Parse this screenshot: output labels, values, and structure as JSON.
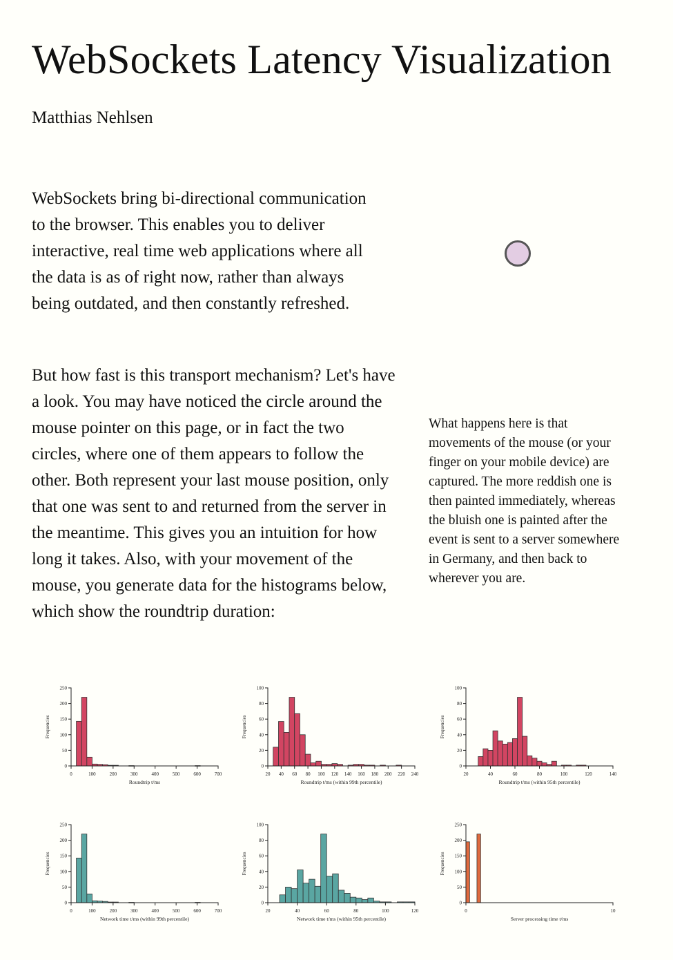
{
  "page": {
    "title": "WebSockets Latency Visualization",
    "author": "Matthias Nehlsen",
    "intro": "WebSockets bring bi-directional communication to the browser. This enables you to deliver interactive, real time web applications where all the data is as of right now, rather than always being outdated, and then constantly refreshed.",
    "body": "But how fast is this transport mechanism? Let's have a look. You may have noticed the circle around the mouse pointer on this page, or in fact the two circles, where one of them appears to follow the other. Both represent your last mouse position, only that one was sent to and returned from the server in the meantime. This gives you an intuition for how long it takes. Also, with your movement of the mouse, you generate data for the histograms below, which show the roundtrip duration:",
    "sidenote": "What happens here is that movements of the mouse (or your finger on your mobile device) are captured. The more reddish one is then painted immediately, whereas the bluish one is painted after the event is sent to a server somewhere in Germany, and then back to wherever you are."
  },
  "colors": {
    "roundtrip": "#d24562",
    "network": "#5aa6a2",
    "server": "#e06a3e",
    "cursor_circle": "#e3cde3"
  },
  "chart_data": [
    {
      "type": "bar",
      "xlabel": "Roundtrip t/ms",
      "ylabel": "Frequencies",
      "xlim": [
        0,
        700
      ],
      "ylim": [
        0,
        250
      ],
      "xticks": [
        0,
        100,
        200,
        300,
        400,
        500,
        600,
        700
      ],
      "yticks": [
        0,
        50,
        100,
        150,
        200,
        250
      ],
      "bin_width": 25,
      "color_key": "roundtrip",
      "bins": [
        [
          25,
          143
        ],
        [
          50,
          220
        ],
        [
          75,
          28
        ],
        [
          100,
          6
        ],
        [
          125,
          5
        ],
        [
          150,
          4
        ],
        [
          175,
          2
        ],
        [
          200,
          2
        ],
        [
          275,
          1
        ],
        [
          590,
          1
        ]
      ]
    },
    {
      "type": "bar",
      "xlabel": "Roundtrip t/ms (within 99th percentile)",
      "ylabel": "Frequencies",
      "xlim": [
        20,
        240
      ],
      "ylim": [
        0,
        100
      ],
      "xticks": [
        20,
        40,
        60,
        80,
        100,
        120,
        140,
        160,
        180,
        200,
        220,
        240
      ],
      "yticks": [
        0,
        20,
        40,
        60,
        80,
        100
      ],
      "bin_width": 8,
      "color_key": "roundtrip",
      "bins": [
        [
          28,
          24
        ],
        [
          36,
          57
        ],
        [
          44,
          43
        ],
        [
          52,
          88
        ],
        [
          60,
          67
        ],
        [
          68,
          40
        ],
        [
          76,
          15
        ],
        [
          84,
          4
        ],
        [
          92,
          6
        ],
        [
          100,
          2
        ],
        [
          108,
          2
        ],
        [
          116,
          3
        ],
        [
          124,
          2
        ],
        [
          140,
          1
        ],
        [
          148,
          2
        ],
        [
          156,
          2
        ],
        [
          164,
          1
        ],
        [
          172,
          1
        ],
        [
          188,
          1
        ],
        [
          212,
          1
        ]
      ]
    },
    {
      "type": "bar",
      "xlabel": "Roundtrip t/ms (within 95th percentile)",
      "ylabel": "Frequencies",
      "xlim": [
        20,
        140
      ],
      "ylim": [
        0,
        100
      ],
      "xticks": [
        20,
        40,
        60,
        80,
        100,
        120,
        140
      ],
      "yticks": [
        0,
        20,
        40,
        60,
        80,
        100
      ],
      "bin_width": 4,
      "color_key": "roundtrip",
      "bins": [
        [
          30,
          12
        ],
        [
          34,
          22
        ],
        [
          38,
          20
        ],
        [
          42,
          45
        ],
        [
          46,
          32
        ],
        [
          50,
          28
        ],
        [
          54,
          30
        ],
        [
          58,
          35
        ],
        [
          62,
          88
        ],
        [
          66,
          38
        ],
        [
          70,
          13
        ],
        [
          74,
          10
        ],
        [
          78,
          6
        ],
        [
          82,
          4
        ],
        [
          86,
          2
        ],
        [
          90,
          6
        ],
        [
          98,
          1
        ],
        [
          102,
          1
        ],
        [
          110,
          1
        ],
        [
          114,
          1
        ]
      ]
    },
    {
      "type": "bar",
      "xlabel": "Network time t/ms (within 99th percentile)",
      "ylabel": "Frequencies",
      "xlim": [
        0,
        700
      ],
      "ylim": [
        0,
        250
      ],
      "xticks": [
        0,
        100,
        200,
        300,
        400,
        500,
        600,
        700
      ],
      "yticks": [
        0,
        50,
        100,
        150,
        200,
        250
      ],
      "bin_width": 25,
      "color_key": "network",
      "bins": [
        [
          25,
          143
        ],
        [
          50,
          220
        ],
        [
          75,
          28
        ],
        [
          100,
          6
        ],
        [
          125,
          5
        ],
        [
          150,
          4
        ],
        [
          175,
          2
        ],
        [
          200,
          2
        ],
        [
          275,
          1
        ],
        [
          590,
          1
        ]
      ]
    },
    {
      "type": "bar",
      "xlabel": "Network time t/ms (within 95th percentile)",
      "ylabel": "Frequencies",
      "xlim": [
        20,
        120
      ],
      "ylim": [
        0,
        100
      ],
      "xticks": [
        20,
        40,
        60,
        80,
        100,
        120
      ],
      "yticks": [
        0,
        20,
        40,
        60,
        80,
        100
      ],
      "bin_width": 4,
      "color_key": "network",
      "bins": [
        [
          28,
          10
        ],
        [
          32,
          20
        ],
        [
          36,
          18
        ],
        [
          40,
          42
        ],
        [
          44,
          25
        ],
        [
          48,
          30
        ],
        [
          52,
          21
        ],
        [
          56,
          88
        ],
        [
          60,
          34
        ],
        [
          64,
          37
        ],
        [
          68,
          16
        ],
        [
          72,
          12
        ],
        [
          76,
          7
        ],
        [
          80,
          6
        ],
        [
          84,
          4
        ],
        [
          88,
          6
        ],
        [
          92,
          2
        ],
        [
          96,
          1
        ],
        [
          100,
          1
        ],
        [
          108,
          1
        ],
        [
          112,
          1
        ],
        [
          116,
          1
        ]
      ]
    },
    {
      "type": "bar",
      "xlabel": "Server processing time t/ms",
      "ylabel": "Frequencies",
      "xlim": [
        0,
        10
      ],
      "ylim": [
        0,
        250
      ],
      "xticks": [
        0,
        10
      ],
      "yticks": [
        0,
        50,
        100,
        150,
        200,
        250
      ],
      "bin_width": 0.25,
      "color_key": "server",
      "bins": [
        [
          0,
          195
        ],
        [
          0.75,
          220
        ]
      ]
    }
  ]
}
